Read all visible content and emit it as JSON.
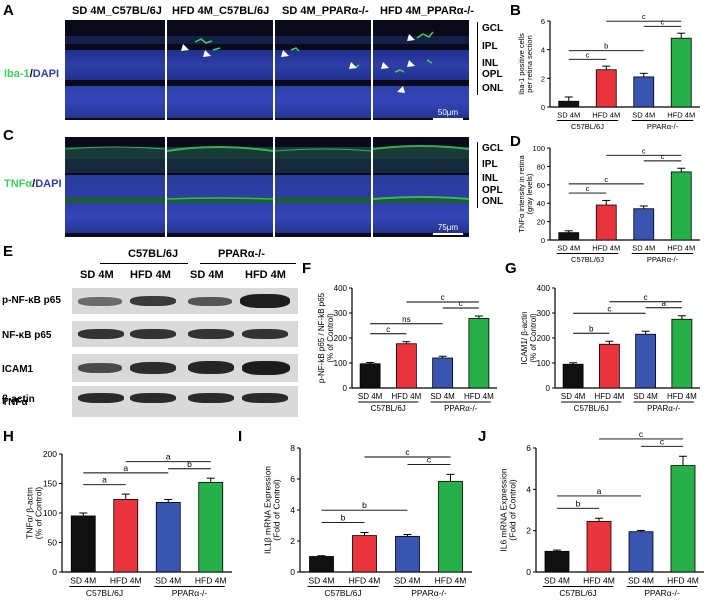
{
  "panel_labels": [
    "A",
    "B",
    "C",
    "D",
    "E",
    "F",
    "G",
    "H",
    "I",
    "J"
  ],
  "micro_headers": [
    "SD 4M_C57BL/6J",
    "HFD 4M_C57BL/6J",
    "SD 4M_PPARα-/-",
    "HFD 4M_PPARα-/-"
  ],
  "stain_A": {
    "primary": "Iba-1",
    "sep": "/",
    "secondary": "DAPI"
  },
  "stain_C": {
    "primary": "TNFα",
    "sep": "/",
    "secondary": "DAPI"
  },
  "layers_A": [
    "GCL",
    "IPL",
    "INL",
    "OPL",
    "ONL"
  ],
  "layers_C": [
    "GCL",
    "IPL",
    "INL",
    "OPL",
    "ONL"
  ],
  "scale_A": "50μm",
  "scale_C": "75μm",
  "wb": {
    "groups": [
      "C57BL/6J",
      "PPARα-/-"
    ],
    "lanes": [
      "SD 4M",
      "HFD 4M",
      "SD 4M",
      "HFD 4M"
    ],
    "rows": [
      "p-NF-κB p65",
      "NF-κB p65",
      "ICAM1",
      "TNFα",
      "β-actin"
    ]
  },
  "colors": {
    "SD_C57": "#111111",
    "HFD_C57": "#e8353d",
    "SD_PPAR": "#3a55b0",
    "HFD_PPAR": "#27b04a",
    "dapi": "#2d3fa8",
    "green": "#3fd05a"
  },
  "chart_data": [
    {
      "id": "B",
      "type": "bar",
      "ylabel": "Iba-1 positive cells per retina section",
      "ylim": [
        0,
        6
      ],
      "yticks": [
        0,
        2,
        4,
        6
      ],
      "categories": [
        "SD 4M",
        "HFD 4M",
        "SD 4M",
        "HFD 4M"
      ],
      "groups": [
        "C57BL/6J",
        "PPARα-/-"
      ],
      "values": [
        0.4,
        2.6,
        2.1,
        4.8
      ],
      "errors": [
        0.3,
        0.25,
        0.25,
        0.35
      ],
      "sig": [
        {
          "a": 0,
          "b": 1,
          "label": "c"
        },
        {
          "a": 0,
          "b": 2,
          "label": "b"
        },
        {
          "a": 2,
          "b": 3,
          "label": "c"
        },
        {
          "a": 1,
          "b": 3,
          "label": "c"
        }
      ]
    },
    {
      "id": "D",
      "type": "bar",
      "ylabel": "TNFα intensity in retina (gray levels)",
      "ylim": [
        0,
        100
      ],
      "yticks": [
        0,
        20,
        40,
        60,
        80,
        100
      ],
      "categories": [
        "SD 4M",
        "HFD 4M",
        "SD 4M",
        "HFD 4M"
      ],
      "groups": [
        "C57BL/6J",
        "PPARα-/-"
      ],
      "values": [
        8,
        38,
        34,
        74
      ],
      "errors": [
        2,
        5,
        3,
        4
      ],
      "sig": [
        {
          "a": 0,
          "b": 1,
          "label": "c"
        },
        {
          "a": 0,
          "b": 2,
          "label": "c"
        },
        {
          "a": 2,
          "b": 3,
          "label": "c"
        },
        {
          "a": 1,
          "b": 3,
          "label": "c"
        }
      ]
    },
    {
      "id": "F",
      "type": "bar",
      "ylabel": "p-NF-kB p65 / NF-kB p65 (% of Control)",
      "ylim": [
        0,
        400
      ],
      "yticks": [
        0,
        100,
        200,
        300,
        400
      ],
      "categories": [
        "SD 4M",
        "HFD 4M",
        "SD 4M",
        "HFD 4M"
      ],
      "groups": [
        "C57BL/6J",
        "PPARα-/-"
      ],
      "values": [
        97,
        177,
        120,
        278
      ],
      "errors": [
        5,
        8,
        7,
        10
      ],
      "sig": [
        {
          "a": 0,
          "b": 1,
          "label": "c"
        },
        {
          "a": 0,
          "b": 2,
          "label": "ns"
        },
        {
          "a": 2,
          "b": 3,
          "label": "c"
        },
        {
          "a": 1,
          "b": 3,
          "label": "c"
        }
      ]
    },
    {
      "id": "G",
      "type": "bar",
      "ylabel": "ICAM1/ β-actin (% of Control)",
      "ylim": [
        0,
        400
      ],
      "yticks": [
        0,
        100,
        200,
        300,
        400
      ],
      "categories": [
        "SD 4M",
        "HFD 4M",
        "SD 4M",
        "HFD 4M"
      ],
      "groups": [
        "C57BL/6J",
        "PPARα-/-"
      ],
      "values": [
        95,
        175,
        215,
        275
      ],
      "errors": [
        6,
        12,
        12,
        14
      ],
      "sig": [
        {
          "a": 0,
          "b": 1,
          "label": "b"
        },
        {
          "a": 0,
          "b": 2,
          "label": "c"
        },
        {
          "a": 2,
          "b": 3,
          "label": "a"
        },
        {
          "a": 1,
          "b": 3,
          "label": "c"
        }
      ]
    },
    {
      "id": "H",
      "type": "bar",
      "ylabel": "TNFα/ β-actin (% of Control)",
      "ylim": [
        0,
        200
      ],
      "yticks": [
        0,
        50,
        100,
        150,
        200
      ],
      "categories": [
        "SD 4M",
        "HFD 4M",
        "SD 4M",
        "HFD 4M"
      ],
      "groups": [
        "C57BL/6J",
        "PPARα-/-"
      ],
      "values": [
        95,
        123,
        118,
        152
      ],
      "errors": [
        5,
        9,
        5,
        7
      ],
      "sig": [
        {
          "a": 0,
          "b": 1,
          "label": "a"
        },
        {
          "a": 0,
          "b": 2,
          "label": "a"
        },
        {
          "a": 2,
          "b": 3,
          "label": "b"
        },
        {
          "a": 1,
          "b": 3,
          "label": "a"
        }
      ]
    },
    {
      "id": "I",
      "type": "bar",
      "ylabel": "IL1β mRNA Expression (Fold of Control)",
      "ylim": [
        0,
        8
      ],
      "yticks": [
        0,
        2,
        4,
        6,
        8
      ],
      "categories": [
        "SD 4M",
        "HFD 4M",
        "SD 4M",
        "HFD 4M"
      ],
      "groups": [
        "C57BL/6J",
        "PPARα-/-"
      ],
      "values": [
        1.0,
        2.35,
        2.3,
        5.85
      ],
      "errors": [
        0.05,
        0.2,
        0.12,
        0.45
      ],
      "sig": [
        {
          "a": 0,
          "b": 1,
          "label": "b"
        },
        {
          "a": 0,
          "b": 2,
          "label": "b"
        },
        {
          "a": 2,
          "b": 3,
          "label": "c"
        },
        {
          "a": 1,
          "b": 3,
          "label": "c"
        }
      ]
    },
    {
      "id": "J",
      "type": "bar",
      "ylabel": "IL6 mRNA Expression (Fold of Control)",
      "ylim": [
        0,
        6
      ],
      "yticks": [
        0,
        2,
        4,
        6
      ],
      "categories": [
        "SD 4M",
        "HFD 4M",
        "SD 4M",
        "HFD 4M"
      ],
      "groups": [
        "C57BL/6J",
        "PPARα-/-"
      ],
      "values": [
        1.0,
        2.45,
        1.95,
        5.15
      ],
      "errors": [
        0.06,
        0.15,
        0.06,
        0.45
      ],
      "sig": [
        {
          "a": 0,
          "b": 1,
          "label": "b"
        },
        {
          "a": 0,
          "b": 2,
          "label": "a"
        },
        {
          "a": 2,
          "b": 3,
          "label": "c"
        },
        {
          "a": 1,
          "b": 3,
          "label": "c"
        }
      ]
    }
  ]
}
